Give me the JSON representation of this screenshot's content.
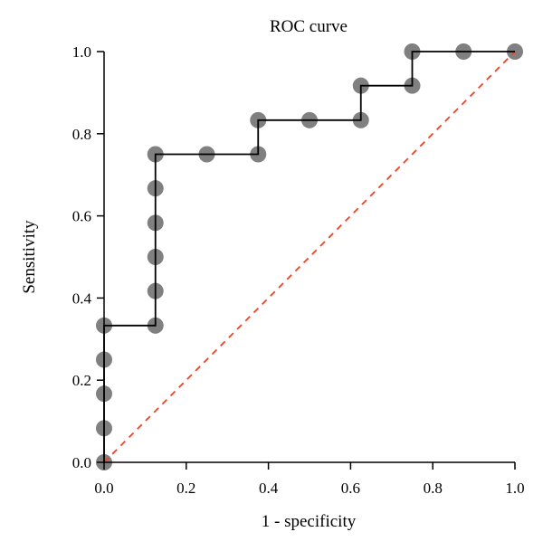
{
  "chart_data": {
    "type": "scatter",
    "title": "ROC curve",
    "xlabel": "1 - specificity",
    "ylabel": "Sensitivity",
    "xlim": [
      0,
      1
    ],
    "ylim": [
      0,
      1
    ],
    "xticks": [
      "0.0",
      "0.2",
      "0.4",
      "0.6",
      "0.8",
      "1.0"
    ],
    "yticks": [
      "0.0",
      "0.2",
      "0.4",
      "0.6",
      "0.8",
      "1.0"
    ],
    "grid": false,
    "series": [
      {
        "type": "scatter",
        "color": "#808080",
        "x": [
          0,
          0,
          0,
          0,
          0,
          0.125,
          0.125,
          0.125,
          0.125,
          0.125,
          0.125,
          0.25,
          0.375,
          0.375,
          0.5,
          0.625,
          0.625,
          0.75,
          0.75,
          0.875,
          1.0
        ],
        "y": [
          0,
          0.083,
          0.167,
          0.25,
          0.333,
          0.333,
          0.417,
          0.5,
          0.583,
          0.667,
          0.75,
          0.75,
          0.75,
          0.833,
          0.833,
          0.833,
          0.917,
          0.917,
          1.0,
          1.0,
          1.0
        ]
      },
      {
        "type": "step",
        "color": "#000000",
        "x": [
          0,
          0,
          0.125,
          0.125,
          0.375,
          0.375,
          0.625,
          0.625,
          0.75,
          0.75,
          1.0
        ],
        "y": [
          0,
          0.333,
          0.333,
          0.75,
          0.75,
          0.833,
          0.833,
          0.917,
          0.917,
          1.0,
          1.0
        ]
      },
      {
        "type": "reference",
        "style": "dashed",
        "color": "#e8442b",
        "x": [
          0,
          1
        ],
        "y": [
          0,
          1
        ]
      }
    ]
  }
}
